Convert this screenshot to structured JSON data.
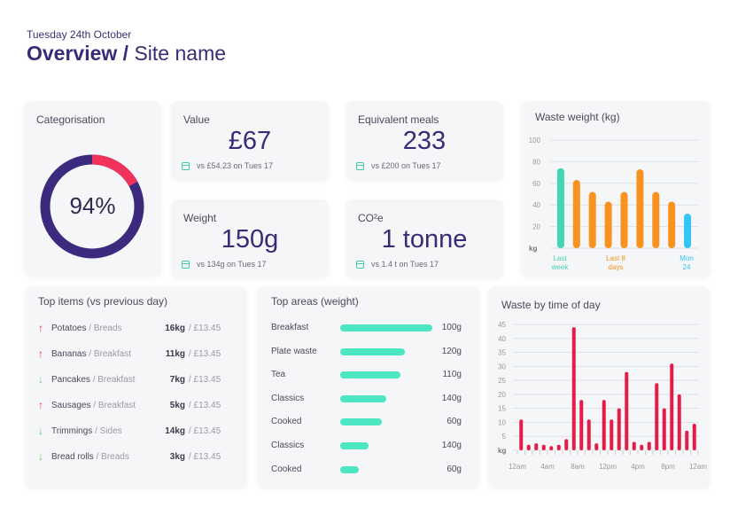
{
  "header": {
    "date": "Tuesday 24th October",
    "title_bold": "Overview /",
    "title_light": "Site name"
  },
  "categorisation": {
    "title": "Categorisation",
    "percent_label": "94%",
    "percent": 94,
    "colors": {
      "main": "#3b2a7e",
      "accent": "#f0335a"
    }
  },
  "metrics": {
    "value": {
      "title": "Value",
      "value": "£67",
      "comparison": "vs  £54.23 on Tues 17"
    },
    "meals": {
      "title": "Equivalent meals",
      "value": "233",
      "comparison": "vs  £200 on Tues 17"
    },
    "weight": {
      "title": "Weight",
      "value": "150g",
      "comparison": "vs  134g on Tues 17"
    },
    "co2": {
      "title": "CO²e",
      "value": "1 tonne",
      "comparison": "vs  1.4 t on Tues 17"
    }
  },
  "waste_weight": {
    "title": "Waste weight (kg)",
    "unit": "kg",
    "labels": [
      {
        "line1": "Last",
        "line2": "week",
        "color": "#43d6b5"
      },
      {
        "line1": "Last 8",
        "line2": "days",
        "color": "#f7931e"
      },
      {
        "line1": "Mon",
        "line2": "24",
        "color": "#33c5f3"
      }
    ]
  },
  "top_items": {
    "title": "Top items (vs previous day)",
    "rows": [
      {
        "direction": "up",
        "arrow": "↑",
        "name": "Potatoes",
        "category": " / Breads",
        "weight": "16kg",
        "price": "/ £13.45"
      },
      {
        "direction": "up",
        "arrow": "↑",
        "name": "Bananas",
        "category": " / Breakfast",
        "weight": "11kg",
        "price": "/ £13.45"
      },
      {
        "direction": "down",
        "arrow": "↓",
        "name": "Pancakes",
        "category": " / Breakfast",
        "weight": "7kg",
        "price": "/ £13.45"
      },
      {
        "direction": "up",
        "arrow": "↑",
        "name": "Sausages",
        "category": " / Breakfast",
        "weight": "5kg",
        "price": "/ £13.45"
      },
      {
        "direction": "down",
        "arrow": "↓",
        "name": "Trimmings",
        "category": " / Sides",
        "weight": "14kg",
        "price": "/ £13.45"
      },
      {
        "direction": "down",
        "arrow": "↓",
        "name": "Bread rolls",
        "category": " / Breads",
        "weight": "3kg",
        "price": "/ £13.45"
      }
    ]
  },
  "top_areas": {
    "title": "Top areas (weight)",
    "rows": [
      {
        "label": "Breakfast",
        "value": "100g",
        "fraction": 1.0
      },
      {
        "label": "Plate waste",
        "value": "120g",
        "fraction": 0.7
      },
      {
        "label": "Tea",
        "value": "110g",
        "fraction": 0.65
      },
      {
        "label": "Classics",
        "value": "140g",
        "fraction": 0.5
      },
      {
        "label": "Cooked",
        "value": "60g",
        "fraction": 0.45
      },
      {
        "label": "Classics",
        "value": "140g",
        "fraction": 0.31
      },
      {
        "label": "Cooked",
        "value": "60g",
        "fraction": 0.2
      }
    ]
  },
  "waste_by_time": {
    "title": "Waste by time of day",
    "unit": "kg"
  },
  "chart_data": [
    {
      "type": "bar",
      "title": "Waste weight (kg)",
      "ylabel": "kg",
      "ylim": [
        0,
        100
      ],
      "yticks": [
        20,
        40,
        60,
        80,
        100
      ],
      "grid": true,
      "values": [
        74,
        63,
        52,
        43,
        52,
        73,
        52,
        43,
        32
      ],
      "colors": [
        "#43d6b5",
        "#f7931e",
        "#f7931e",
        "#f7931e",
        "#f7931e",
        "#f7931e",
        "#f7931e",
        "#f7931e",
        "#33c5f3"
      ],
      "x_labels": [
        "Last week",
        "Last 8 days",
        "Mon 24"
      ]
    },
    {
      "type": "bar",
      "title": "Waste by time of day",
      "ylabel": "kg",
      "ylim": [
        0,
        45
      ],
      "yticks": [
        5,
        10,
        15,
        20,
        25,
        30,
        35,
        40,
        45
      ],
      "grid": true,
      "x_tick_labels": [
        "12am",
        "4am",
        "8am",
        "12pm",
        "4pm",
        "8pm",
        "12am"
      ],
      "color": "#e31c48",
      "values": [
        11,
        2,
        2.5,
        2,
        1.5,
        2,
        4,
        44,
        18,
        11,
        2.5,
        18,
        11,
        15,
        28,
        3,
        2,
        3,
        24,
        15,
        31,
        20,
        7,
        9.5
      ]
    }
  ]
}
